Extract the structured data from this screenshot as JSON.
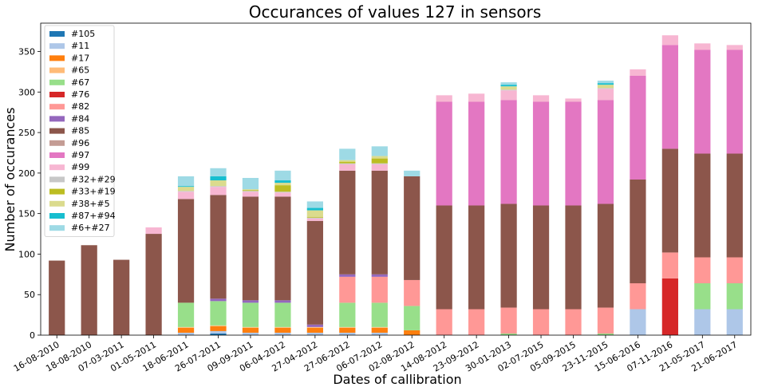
{
  "chart_data": {
    "type": "bar",
    "stacked": true,
    "title": "Occurances of values 127 in sensors",
    "xlabel": "Dates of callibration",
    "ylabel": "Number of occurances",
    "ylim": [
      0,
      385
    ],
    "yticks": [
      0,
      50,
      100,
      150,
      200,
      250,
      300,
      350
    ],
    "grid": false,
    "legend_position": "top-left",
    "categories": [
      "16-08-2010",
      "18-08-2010",
      "07-03-2011",
      "01-05-2011",
      "18-06-2011",
      "26-07-2011",
      "09-09-2011",
      "06-04-2012",
      "27-04-2012",
      "27-06-2012",
      "06-07-2012",
      "02-08-2012",
      "14-08-2012",
      "23-09-2012",
      "30-01-2013",
      "02-07-2015",
      "05-09-2015",
      "23-11-2015",
      "15-06-2016",
      "07-11-2016",
      "21-05-2017",
      "21-06-2017"
    ],
    "series": [
      {
        "name": "#105",
        "color": "#1f77b4",
        "values": [
          0,
          0,
          0,
          0,
          0,
          2,
          0,
          0,
          0,
          0,
          0,
          0,
          0,
          0,
          0,
          0,
          0,
          0,
          0,
          0,
          0,
          0
        ]
      },
      {
        "name": "#11",
        "color": "#aec7e8",
        "values": [
          0,
          0,
          0,
          0,
          3,
          3,
          3,
          3,
          3,
          3,
          3,
          0,
          0,
          0,
          0,
          0,
          0,
          0,
          32,
          0,
          32,
          32
        ]
      },
      {
        "name": "#17",
        "color": "#ff7f0e",
        "values": [
          0,
          0,
          0,
          0,
          6,
          6,
          6,
          6,
          6,
          6,
          6,
          6,
          0,
          0,
          0,
          0,
          0,
          0,
          0,
          0,
          0,
          0
        ]
      },
      {
        "name": "#65",
        "color": "#ffbb78",
        "values": [
          0,
          0,
          0,
          0,
          1,
          1,
          1,
          1,
          1,
          1,
          1,
          0,
          0,
          0,
          0,
          0,
          0,
          0,
          0,
          0,
          0,
          0
        ]
      },
      {
        "name": "#67",
        "color": "#98df8a",
        "values": [
          0,
          0,
          0,
          0,
          30,
          30,
          30,
          30,
          0,
          30,
          30,
          30,
          0,
          0,
          2,
          0,
          0,
          2,
          0,
          0,
          32,
          32
        ]
      },
      {
        "name": "#76",
        "color": "#d62728",
        "values": [
          0,
          0,
          0,
          0,
          0,
          0,
          0,
          0,
          0,
          0,
          0,
          0,
          0,
          0,
          0,
          0,
          0,
          0,
          0,
          70,
          0,
          0
        ]
      },
      {
        "name": "#82",
        "color": "#ff9896",
        "values": [
          0,
          0,
          0,
          0,
          0,
          0,
          0,
          0,
          0,
          32,
          32,
          32,
          32,
          32,
          32,
          32,
          32,
          32,
          32,
          32,
          32,
          32
        ]
      },
      {
        "name": "#84",
        "color": "#9467bd",
        "values": [
          0,
          0,
          0,
          0,
          0,
          3,
          3,
          3,
          3,
          3,
          3,
          0,
          0,
          0,
          0,
          0,
          0,
          0,
          0,
          0,
          0,
          0
        ]
      },
      {
        "name": "#85",
        "color": "#8c564b",
        "values": [
          92,
          111,
          93,
          125,
          128,
          128,
          128,
          128,
          128,
          128,
          128,
          128,
          128,
          128,
          128,
          128,
          128,
          128,
          128,
          128,
          128,
          128
        ]
      },
      {
        "name": "#96",
        "color": "#c49c94",
        "values": [
          0,
          0,
          0,
          0,
          0,
          0,
          0,
          0,
          0,
          0,
          0,
          0,
          0,
          0,
          0,
          0,
          0,
          0,
          0,
          0,
          0,
          0
        ]
      },
      {
        "name": "#97",
        "color": "#e377c2",
        "values": [
          0,
          0,
          0,
          0,
          0,
          0,
          0,
          0,
          0,
          0,
          0,
          0,
          128,
          128,
          128,
          128,
          128,
          128,
          128,
          128,
          128,
          128
        ]
      },
      {
        "name": "#99",
        "color": "#f7b6d2",
        "values": [
          0,
          0,
          0,
          8,
          9,
          10,
          6,
          5,
          3,
          8,
          8,
          0,
          8,
          10,
          12,
          8,
          4,
          14,
          8,
          12,
          8,
          6
        ]
      },
      {
        "name": "#32+#29",
        "color": "#c7c7c7",
        "values": [
          0,
          0,
          0,
          0,
          1,
          1,
          1,
          1,
          1,
          1,
          1,
          0,
          0,
          0,
          1,
          0,
          0,
          1,
          0,
          0,
          0,
          0
        ]
      },
      {
        "name": "#33+#19",
        "color": "#bcbd22",
        "values": [
          0,
          0,
          0,
          0,
          0,
          0,
          1,
          8,
          1,
          2,
          6,
          0,
          0,
          0,
          0,
          0,
          0,
          0,
          0,
          0,
          0,
          0
        ]
      },
      {
        "name": "#38+#5",
        "color": "#dbdb8d",
        "values": [
          0,
          0,
          0,
          0,
          5,
          7,
          1,
          3,
          8,
          2,
          3,
          0,
          0,
          0,
          4,
          0,
          0,
          4,
          0,
          0,
          0,
          0
        ]
      },
      {
        "name": "#87+#94",
        "color": "#17becf",
        "values": [
          0,
          0,
          0,
          0,
          1,
          5,
          0,
          3,
          3,
          0,
          0,
          0,
          0,
          0,
          2,
          0,
          0,
          2,
          0,
          0,
          0,
          0
        ]
      },
      {
        "name": "#6+#27",
        "color": "#9edae5",
        "values": [
          0,
          0,
          0,
          0,
          12,
          10,
          14,
          12,
          8,
          14,
          12,
          7,
          0,
          0,
          3,
          0,
          0,
          3,
          0,
          0,
          0,
          0
        ]
      }
    ]
  }
}
